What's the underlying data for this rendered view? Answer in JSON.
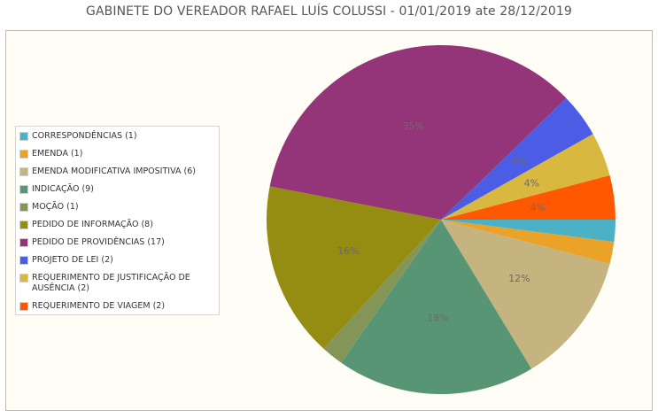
{
  "title": "GABINETE DO VEREADOR RAFAEL LUÍS COLUSSI - 01/01/2019 ate 28/12/2019",
  "chart_data": {
    "type": "pie",
    "title": "GABINETE DO VEREADOR RAFAEL LUÍS COLUSSI - 01/01/2019 ate 28/12/2019",
    "legend_position": "left",
    "slices": [
      {
        "label": "CORRESPONDÊNCIAS (1)",
        "value": 1,
        "color": "#4bb2c5",
        "pct_label": ""
      },
      {
        "label": "EMENDA (1)",
        "value": 1,
        "color": "#eaa228",
        "pct_label": ""
      },
      {
        "label": "EMENDA MODIFICATIVA IMPOSITIVA (6)",
        "value": 6,
        "color": "#c5b47f",
        "pct_label": "12%"
      },
      {
        "label": "INDICAÇÃO (9)",
        "value": 9,
        "color": "#579575",
        "pct_label": "18%"
      },
      {
        "label": "MOÇÃO (1)",
        "value": 1,
        "color": "#839557",
        "pct_label": ""
      },
      {
        "label": "PEDIDO DE INFORMAÇÃO (8)",
        "value": 8,
        "color": "#958c12",
        "pct_label": "16%"
      },
      {
        "label": "PEDIDO DE PROVIDÊNCIAS (17)",
        "value": 17,
        "color": "#953579",
        "pct_label": "35%"
      },
      {
        "label": "PROJETO DE LEI (2)",
        "value": 2,
        "color": "#4b5de4",
        "pct_label": "4%"
      },
      {
        "label": "REQUERIMENTO DE JUSTIFICAÇÃO DE AUSÊNCIA (2)",
        "value": 2,
        "color": "#d8b83f",
        "pct_label": "4%"
      },
      {
        "label": "REQUERIMENTO DE VIAGEM (2)",
        "value": 2,
        "color": "#ff5800",
        "pct_label": "4%"
      }
    ]
  }
}
